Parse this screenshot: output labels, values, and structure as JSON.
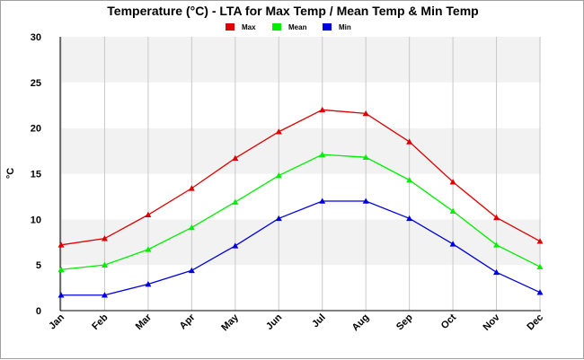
{
  "chart_data": {
    "type": "line",
    "title": "Temperature (°C) - LTA for Max Temp / Mean Temp & Min Temp",
    "xlabel": "",
    "ylabel": "°C",
    "ylim": [
      0,
      30
    ],
    "yticks": [
      0,
      5,
      10,
      15,
      20,
      25,
      30
    ],
    "categories": [
      "Jan",
      "Feb",
      "Mar",
      "Apr",
      "May",
      "Jun",
      "Jul",
      "Aug",
      "Sep",
      "Oct",
      "Nov",
      "Dec"
    ],
    "grid": true,
    "legend_position": "top-center",
    "series": [
      {
        "name": "Max",
        "color": "#dd0000",
        "marker": "triangle",
        "values": [
          7.2,
          7.9,
          10.5,
          13.4,
          16.7,
          19.6,
          22.0,
          21.6,
          18.5,
          14.1,
          10.2,
          7.6
        ]
      },
      {
        "name": "Mean",
        "color": "#00ee00",
        "marker": "triangle",
        "values": [
          4.5,
          5.0,
          6.7,
          9.1,
          11.9,
          14.8,
          17.1,
          16.8,
          14.3,
          10.9,
          7.2,
          4.8
        ]
      },
      {
        "name": "Min",
        "color": "#0000dd",
        "marker": "triangle",
        "values": [
          1.7,
          1.7,
          2.9,
          4.4,
          7.1,
          10.1,
          12.0,
          12.0,
          10.1,
          7.3,
          4.2,
          2.0
        ]
      }
    ]
  }
}
